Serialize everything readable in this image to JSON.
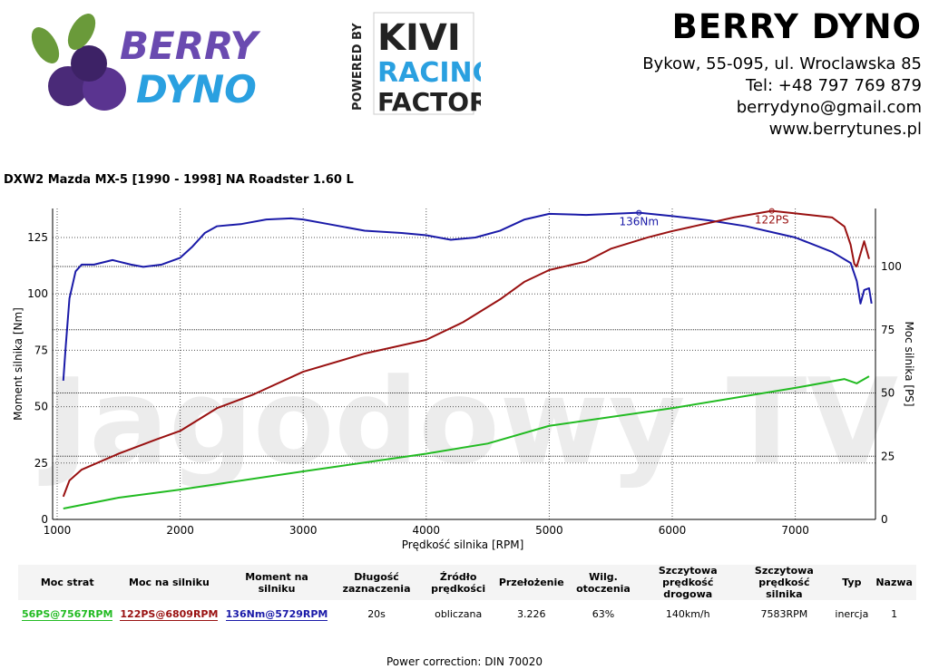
{
  "logo": {
    "berry": "BERRY",
    "dyno": "DYNO",
    "powered": "POWERED BY",
    "kivi": "KIVI",
    "racing": "RACING",
    "factory": "FACTORY"
  },
  "company": {
    "name": "BERRY DYNO",
    "address": "Bykow, 55-095, ul. Wroclawska 85",
    "phone": "Tel: +48 797 769 879",
    "email": "berrydyno@gmail.com",
    "web": "www.berrytunes.pl"
  },
  "title": "DXW2 Mazda MX-5 [1990 - 1998] NA Roadster 1.60 L",
  "watermark": "Jagodowy TV",
  "chart_data": {
    "type": "line",
    "xlabel": "Prędkość silnika [RPM]",
    "ylabel": "Moment silnika [Nm]",
    "y2label": "Moc silnika [PS]",
    "xlim": [
      1000,
      7650
    ],
    "ylim": [
      0,
      138
    ],
    "y2lim": [
      0,
      123.5
    ],
    "xticks": [
      1000,
      2000,
      3000,
      4000,
      5000,
      6000,
      7000
    ],
    "yticks": [
      0,
      25,
      50,
      75,
      100,
      125
    ],
    "y2ticks": [
      0,
      25,
      50,
      75,
      100
    ],
    "grid": true,
    "series": [
      {
        "name": "Moment na silniku",
        "axis": "left",
        "color": "#1a1aa8",
        "marker": {
          "x": 5729,
          "y": 136,
          "label": "136Nm"
        },
        "x": [
          1050,
          1070,
          1100,
          1150,
          1200,
          1300,
          1450,
          1600,
          1700,
          1850,
          2000,
          2100,
          2200,
          2300,
          2500,
          2700,
          2900,
          3000,
          3200,
          3500,
          3800,
          4000,
          4200,
          4400,
          4600,
          4800,
          5000,
          5300,
          5729,
          6000,
          6300,
          6600,
          7000,
          7300,
          7450,
          7500,
          7530,
          7560,
          7600,
          7620
        ],
        "y": [
          61.5,
          77,
          98,
          110,
          113,
          113,
          115,
          113,
          112,
          113,
          116,
          121,
          127,
          130,
          131,
          133,
          133.5,
          133,
          131,
          128,
          127,
          126,
          124,
          125,
          128,
          133,
          135.5,
          135,
          136,
          134.5,
          132.6,
          130,
          125,
          118.6,
          113.7,
          105.7,
          95.7,
          101.7,
          102.5,
          95.7
        ]
      },
      {
        "name": "Moc na silniku",
        "axis": "right",
        "color": "#991111",
        "marker": {
          "x": 6809,
          "y": 122,
          "label": "122PS"
        },
        "x": [
          1050,
          1100,
          1200,
          1500,
          1800,
          2000,
          2300,
          2600,
          3000,
          3500,
          4000,
          4300,
          4600,
          4800,
          5000,
          5300,
          5500,
          5800,
          6000,
          6500,
          6809,
          7000,
          7300,
          7400,
          7450,
          7480,
          7500,
          7560,
          7600
        ],
        "y": [
          9,
          15.4,
          19.7,
          26,
          31.5,
          35,
          44,
          49.5,
          58.4,
          65.6,
          71,
          78,
          87,
          94,
          98.6,
          102,
          107,
          111.5,
          114,
          119.4,
          122,
          121,
          119.4,
          115.8,
          108.6,
          101,
          100,
          110,
          103
        ]
      },
      {
        "name": "Moc strat",
        "axis": "right",
        "color": "#22bb22",
        "x": [
          1050,
          1500,
          2000,
          3000,
          4000,
          4500,
          5000,
          6000,
          7000,
          7400,
          7500,
          7600
        ],
        "y": [
          4.3,
          8.6,
          11.8,
          19,
          26,
          30,
          37,
          44,
          52,
          55.5,
          53.8,
          56.6
        ]
      }
    ]
  },
  "table": {
    "headers": [
      "Moc strat",
      "Moc na silniku",
      "Moment na silniku",
      "Długość zaznaczenia",
      "Źródło prędkości",
      "Przełożenie",
      "Wilg. otoczenia",
      "Szczytowa prędkość drogowa",
      "Szczytowa prędkość silnika",
      "Typ",
      "Nazwa"
    ],
    "row": [
      "56PS@7567RPM",
      "122PS@6809RPM",
      "136Nm@5729RPM",
      "20s",
      "obliczana",
      "3.226",
      "63%",
      "140km/h",
      "7583RPM",
      "inercja",
      "1"
    ]
  },
  "footer": "Power correction: DIN 70020"
}
